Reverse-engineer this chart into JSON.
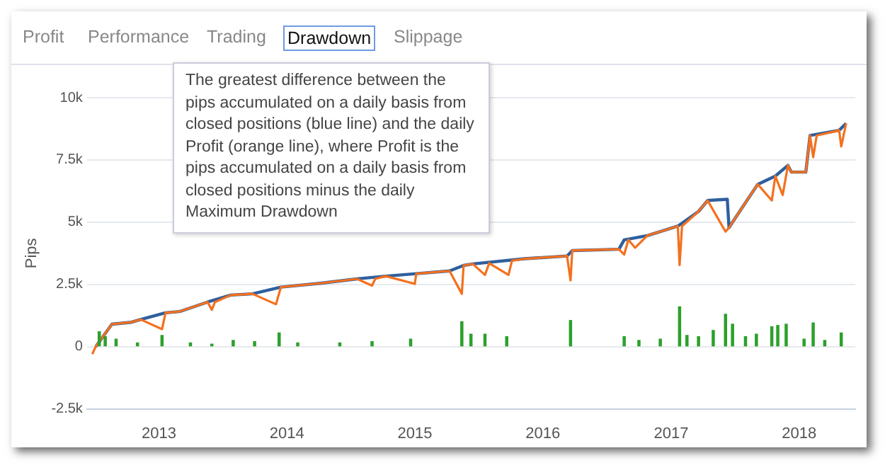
{
  "chart_data": {
    "type": "line",
    "ylabel": "Pips",
    "annotations": [
      "Profit",
      "Performance",
      "Trading",
      "Drawdown",
      "Slippage",
      "The greatest difference between the pips accumulated on a daily basis from closed positions (blue line) and the daily Profit (orange line), where Profit is the pips accumulated on a daily basis from closed positions minus the daily Maximum Drawdown"
    ],
    "series": [
      {
        "type": "bar",
        "color": "#2ca02c",
        "x": [
          "2012-07-15",
          "2012-08-01",
          "2012-09-01",
          "2012-11-01",
          "2013-01-10",
          "2013-04-01",
          "2013-06-01",
          "2013-08-01",
          "2013-10-01",
          "2013-12-10",
          "2014-02-01",
          "2014-06-01",
          "2014-09-01",
          "2014-12-20",
          "2015-05-15",
          "2015-06-10",
          "2015-07-20",
          "2015-09-20",
          "2016-03-20",
          "2016-08-20",
          "2016-10-01",
          "2016-12-01",
          "2017-01-25",
          "2017-02-15",
          "2017-03-20",
          "2017-05-01",
          "2017-06-05",
          "2017-06-25",
          "2017-08-01",
          "2017-09-01",
          "2017-10-15",
          "2017-11-01",
          "2017-11-25",
          "2018-01-15",
          "2018-02-10",
          "2018-03-15",
          "2018-05-01"
        ],
        "values": [
          600,
          400,
          300,
          150,
          450,
          150,
          100,
          250,
          200,
          550,
          150,
          150,
          200,
          300,
          1000,
          500,
          500,
          400,
          1050,
          400,
          250,
          300,
          1600,
          450,
          400,
          650,
          1300,
          900,
          400,
          500,
          800,
          850,
          900,
          300,
          950,
          250,
          550
        ]
      },
      {
        "color": "#f4701e",
        "x": [
          "2012-06-25",
          "2012-07-05",
          "2012-08-20",
          "2012-10-15",
          "2012-11-10",
          "2013-01-10",
          "2013-01-20",
          "2013-03-01",
          "2013-05-20",
          "2013-06-01",
          "2013-06-10",
          "2013-07-25",
          "2013-09-25",
          "2013-12-01",
          "2013-12-15",
          "2014-04-10",
          "2014-07-20",
          "2014-09-01",
          "2014-09-10",
          "2014-10-10",
          "2015-01-01",
          "2015-01-05",
          "2015-04-10",
          "2015-05-15",
          "2015-05-20",
          "2015-06-15",
          "2015-07-20",
          "2015-08-01",
          "2015-09-25",
          "2015-10-05",
          "2015-11-10",
          "2016-03-10",
          "2016-03-20",
          "2016-03-25",
          "2016-08-05",
          "2016-08-20",
          "2016-09-01",
          "2016-09-20",
          "2016-10-25",
          "2017-01-20",
          "2017-01-25",
          "2017-02-01",
          "2017-03-20",
          "2017-04-15",
          "2017-06-05",
          "2017-06-15",
          "2017-08-05",
          "2017-09-05",
          "2017-10-15",
          "2017-10-25",
          "2017-11-15",
          "2017-11-30",
          "2017-12-10",
          "2018-01-20",
          "2018-02-01",
          "2018-02-10",
          "2018-02-20",
          "2018-04-25",
          "2018-05-01",
          "2018-05-15"
        ],
        "values": [
          -300,
          0,
          900,
          980,
          1090,
          700,
          1360,
          1410,
          1790,
          1480,
          1790,
          2070,
          2120,
          1700,
          2390,
          2550,
          2720,
          2450,
          2720,
          2830,
          2520,
          2930,
          3040,
          2120,
          3260,
          3320,
          2880,
          3350,
          2880,
          3450,
          3530,
          3640,
          2660,
          3860,
          3910,
          3700,
          4290,
          3970,
          4460,
          4840,
          3280,
          4840,
          5430,
          5870,
          4620,
          4780,
          5870,
          6520,
          5870,
          6850,
          6090,
          7280,
          7010,
          7010,
          8480,
          7610,
          8480,
          8690,
          8040,
          8970
        ]
      },
      {
        "color": "#2f5f9e",
        "x": [
          "2012-07-05",
          "2012-08-20",
          "2012-10-15",
          "2012-11-10",
          "2013-01-20",
          "2013-03-01",
          "2013-05-20",
          "2013-07-25",
          "2013-09-25",
          "2013-12-15",
          "2014-04-10",
          "2014-07-20",
          "2014-10-10",
          "2015-01-05",
          "2015-04-10",
          "2015-05-20",
          "2015-06-15",
          "2015-11-10",
          "2016-03-10",
          "2016-03-25",
          "2016-08-05",
          "2016-08-20",
          "2016-10-25",
          "2017-01-20",
          "2017-03-20",
          "2017-04-15",
          "2017-06-10",
          "2017-06-15",
          "2017-08-05",
          "2017-09-05",
          "2017-10-25",
          "2017-11-30",
          "2017-12-10",
          "2018-01-20",
          "2018-02-01",
          "2018-04-25",
          "2018-05-15"
        ],
        "values": [
          0,
          900,
          980,
          1090,
          1360,
          1410,
          1790,
          2070,
          2120,
          2390,
          2550,
          2720,
          2830,
          2930,
          3040,
          3260,
          3320,
          3530,
          3640,
          3860,
          3910,
          4290,
          4460,
          4840,
          5430,
          5870,
          5920,
          4780,
          5870,
          6520,
          6850,
          7280,
          7010,
          7010,
          8480,
          8690,
          8970
        ]
      }
    ],
    "xlim": [
      "2012-06-10",
      "2018-06-10"
    ],
    "xticks": [
      {
        "value": "2013-01-01",
        "label": "2013"
      },
      {
        "value": "2014-01-01",
        "label": "2014"
      },
      {
        "value": "2015-01-01",
        "label": "2015"
      },
      {
        "value": "2016-01-01",
        "label": "2016"
      },
      {
        "value": "2017-01-01",
        "label": "2017"
      },
      {
        "value": "2018-01-01",
        "label": "2018"
      }
    ],
    "ylim": [
      -2500,
      10000
    ],
    "yticks": [
      {
        "value": -2500,
        "label": "-2.5k"
      },
      0,
      {
        "value": 2500,
        "label": "2.5k"
      },
      {
        "value": 5000,
        "label": "5k"
      },
      {
        "value": 7500,
        "label": "7.5k"
      },
      {
        "value": 10000,
        "label": "10k"
      }
    ],
    "grid": "y",
    "legend": false
  }
}
